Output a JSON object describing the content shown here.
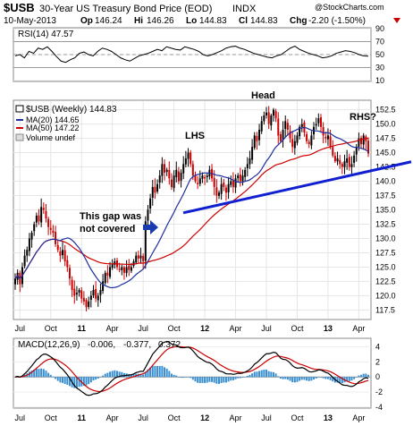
{
  "header": {
    "symbol": "$USB",
    "name": "30-Year US Treasury Bond Price (EOD)",
    "exchange": "INDX",
    "date": "10-May-2013",
    "open_label": "Op",
    "open": "146.24",
    "high_label": "Hi",
    "high": "146.26",
    "low_label": "Lo",
    "low": "144.83",
    "close_label": "Cl",
    "close": "144.83",
    "chg_label": "Chg",
    "chg": "-2.20 (-1.50%)",
    "watermark": "@StockCharts.com"
  },
  "colors": {
    "up": "#000000",
    "down": "#cc0000",
    "ma20": "#1f2f9e",
    "ma50": "#cc0000",
    "trend": "#1020d0",
    "annotation": "#1a3bb0",
    "macd_hist": "#3a8fd0"
  },
  "chart_data": [
    {
      "type": "line",
      "panel": "rsi",
      "label": "RSI(14) 47.57",
      "ylim": [
        10,
        90
      ],
      "ticks": [
        10,
        30,
        50,
        70,
        90
      ],
      "guides": [
        30,
        70
      ],
      "values": [
        48,
        50,
        45,
        55,
        52,
        60,
        58,
        62,
        55,
        47,
        40,
        38,
        42,
        45,
        52,
        54,
        50,
        48,
        55,
        60,
        58,
        55,
        50,
        45,
        42,
        40,
        44,
        48,
        50,
        52,
        55,
        58,
        56,
        62,
        60,
        58,
        57,
        62,
        60,
        58,
        55,
        50,
        48,
        50,
        53,
        56,
        60,
        62,
        63,
        60,
        58,
        55,
        52,
        50,
        48,
        46,
        45,
        48,
        50,
        55,
        60,
        63,
        58,
        55,
        52,
        50,
        48,
        45,
        46,
        48,
        52,
        54,
        56,
        55,
        53,
        50,
        48,
        47.57
      ]
    },
    {
      "type": "candlestick",
      "panel": "price",
      "label": "$USB (Weekly) 144.83",
      "ylim": [
        116,
        154
      ],
      "ticks": [
        117.5,
        120.0,
        122.5,
        125.0,
        127.5,
        130.0,
        132.5,
        135.0,
        137.5,
        140.0,
        142.5,
        145.0,
        147.5,
        150.0,
        152.5
      ],
      "x_ticks": [
        {
          "label": "Jul",
          "i": 2
        },
        {
          "label": "Oct",
          "i": 15
        },
        {
          "label": "11",
          "i": 28
        },
        {
          "label": "Apr",
          "i": 41
        },
        {
          "label": "Jul",
          "i": 54
        },
        {
          "label": "Oct",
          "i": 67
        },
        {
          "label": "12",
          "i": 80
        },
        {
          "label": "Apr",
          "i": 93
        },
        {
          "label": "Jul",
          "i": 106
        },
        {
          "label": "Oct",
          "i": 119
        },
        {
          "label": "13",
          "i": 132
        },
        {
          "label": "Apr",
          "i": 145
        }
      ],
      "close": [
        123.0,
        124.0,
        122.0,
        125.0,
        127.0,
        128.0,
        130.0,
        131.0,
        132.5,
        134.0,
        133.0,
        135.5,
        135.0,
        133.5,
        132.0,
        131.5,
        131.0,
        129.0,
        128.0,
        127.0,
        128.0,
        126.0,
        125.0,
        123.0,
        121.0,
        120.0,
        120.5,
        121.0,
        119.5,
        119.0,
        118.0,
        119.0,
        120.0,
        121.0,
        119.5,
        120.0,
        121.0,
        122.5,
        124.0,
        123.5,
        125.0,
        125.5,
        126.0,
        125.0,
        124.5,
        125.0,
        124.0,
        125.0,
        124.5,
        125.0,
        126.0,
        127.0,
        126.5,
        127.0,
        126.0,
        133.0,
        135.0,
        137.0,
        139.0,
        138.0,
        139.5,
        141.0,
        143.0,
        141.5,
        142.0,
        140.5,
        139.0,
        141.0,
        142.0,
        140.0,
        141.5,
        143.0,
        144.0,
        145.0,
        143.0,
        141.0,
        140.0,
        139.5,
        140.5,
        141.0,
        140.5,
        141.0,
        142.0,
        140.5,
        139.0,
        137.5,
        138.0,
        139.5,
        139.0,
        138.0,
        139.5,
        140.0,
        139.0,
        140.5,
        141.0,
        140.0,
        141.0,
        142.0,
        143.0,
        144.0,
        146.0,
        148.0,
        147.0,
        149.0,
        150.5,
        151.5,
        152.0,
        150.0,
        151.5,
        152.5,
        151.0,
        148.0,
        147.0,
        149.0,
        150.5,
        149.0,
        147.5,
        146.0,
        147.0,
        148.0,
        149.5,
        150.0,
        148.5,
        147.0,
        146.5,
        148.0,
        149.5,
        150.0,
        151.0,
        149.5,
        148.0,
        147.5,
        148.0,
        146.0,
        144.5,
        143.5,
        144.0,
        143.0,
        142.5,
        143.5,
        144.0,
        142.5,
        143.0,
        144.5,
        146.0,
        147.5,
        146.5,
        148.0,
        147.0,
        144.83
      ]
    },
    {
      "type": "line",
      "panel": "price",
      "name": "MA(20) 144.65",
      "period": 20
    },
    {
      "type": "line",
      "panel": "price",
      "name": "MA(50) 147.22",
      "period": 50
    },
    {
      "type": "bar",
      "panel": "price",
      "name": "Volume undef"
    },
    {
      "type": "line",
      "panel": "macd",
      "label": "MACD(12,26,9) -0.006, -0.377, 0.372",
      "label_parts": [
        "MACD(12,26,9)",
        "-0.006,",
        "-0.377,",
        "0.372"
      ],
      "ylim": [
        -4,
        5
      ],
      "ticks": [
        -4,
        -2,
        0,
        2,
        4
      ],
      "x_ticks": [
        {
          "label": "Jul",
          "i": 2
        },
        {
          "label": "Oct",
          "i": 15
        },
        {
          "label": "11",
          "i": 28
        },
        {
          "label": "Apr",
          "i": 41
        },
        {
          "label": "Jul",
          "i": 54
        },
        {
          "label": "Oct",
          "i": 67
        },
        {
          "label": "12",
          "i": 80
        },
        {
          "label": "Apr",
          "i": 93
        },
        {
          "label": "Jul",
          "i": 106
        },
        {
          "label": "Oct",
          "i": 119
        },
        {
          "label": "13",
          "i": 132
        },
        {
          "label": "Apr",
          "i": 145
        }
      ]
    }
  ],
  "annotations": {
    "gap_line1": "This gap was",
    "gap_line2": "not covered",
    "lhs": "LHS",
    "head": "Head",
    "rhs": "RHS?"
  },
  "trendline": {
    "x": [
      55,
      152
    ],
    "y": [
      133.0,
      142.0
    ]
  }
}
